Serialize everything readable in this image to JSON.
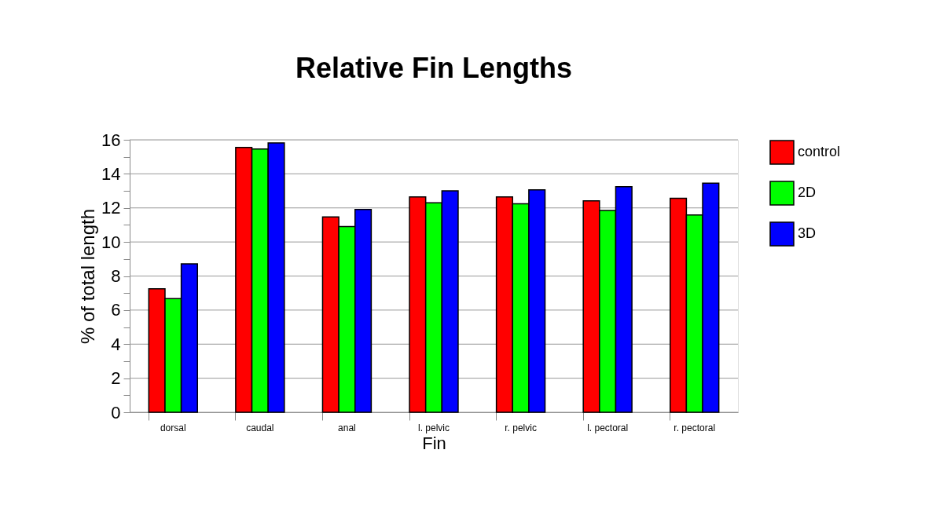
{
  "chart_data": {
    "type": "bar",
    "title": "Relative Fin Lengths",
    "xlabel": "Fin",
    "ylabel": "% of total length",
    "categories": [
      "dorsal",
      "caudal",
      "anal",
      "l. pelvic",
      "r. pelvic",
      "l. pectoral",
      "r. pectoral"
    ],
    "series": [
      {
        "name": "control",
        "color": "#ff0000",
        "values": [
          7.25,
          15.55,
          11.47,
          12.65,
          12.65,
          12.41,
          12.57
        ]
      },
      {
        "name": "2D",
        "color": "#00ff00",
        "values": [
          6.67,
          15.46,
          10.9,
          12.3,
          12.24,
          11.85,
          11.59
        ]
      },
      {
        "name": "3D",
        "color": "#0000ff",
        "values": [
          8.72,
          15.82,
          11.91,
          13.0,
          13.06,
          13.25,
          13.45
        ]
      }
    ],
    "ylim": [
      0,
      16
    ],
    "yticks": [
      0,
      {
        "value": 1,
        "label": null
      },
      2,
      {
        "value": 3,
        "label": null
      },
      4,
      {
        "value": 5,
        "label": null
      },
      6,
      {
        "value": 7,
        "label": null
      },
      8,
      {
        "value": 9,
        "label": null
      },
      10,
      {
        "value": 11,
        "label": null
      },
      12,
      {
        "value": 13,
        "label": null
      },
      14,
      {
        "value": 15,
        "label": null
      },
      16
    ],
    "grid": "y",
    "legend": "right"
  }
}
